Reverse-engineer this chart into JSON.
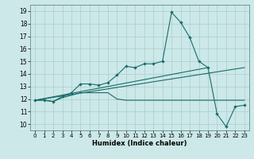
{
  "xlabel": "Humidex (Indice chaleur)",
  "xlim": [
    -0.5,
    23.5
  ],
  "ylim": [
    9.5,
    19.5
  ],
  "xticks": [
    0,
    1,
    2,
    3,
    4,
    5,
    6,
    7,
    8,
    9,
    10,
    11,
    12,
    13,
    14,
    15,
    16,
    17,
    18,
    19,
    20,
    21,
    22,
    23
  ],
  "yticks": [
    10,
    11,
    12,
    13,
    14,
    15,
    16,
    17,
    18,
    19
  ],
  "bg_color": "#cce8e8",
  "grid_color": "#aacece",
  "line_color": "#1a6b6b",
  "curve_x": [
    0,
    1,
    2,
    3,
    4,
    5,
    6,
    7,
    8,
    9,
    10,
    11,
    12,
    13,
    14,
    15,
    16,
    17,
    18,
    19,
    20,
    21,
    22,
    23
  ],
  "curve_y": [
    11.9,
    11.9,
    11.8,
    12.2,
    12.5,
    13.2,
    13.2,
    13.1,
    13.3,
    13.9,
    14.6,
    14.5,
    14.8,
    14.8,
    15.0,
    18.9,
    18.1,
    16.9,
    15.0,
    14.5,
    10.8,
    9.8,
    11.4,
    11.5
  ],
  "flat_x": [
    0,
    1,
    2,
    3,
    4,
    5,
    6,
    7,
    8,
    9,
    10,
    11,
    12,
    13,
    14,
    15,
    16,
    17,
    18,
    19,
    20,
    21,
    22,
    23
  ],
  "flat_y": [
    11.9,
    11.9,
    11.8,
    12.1,
    12.3,
    12.5,
    12.5,
    12.5,
    12.5,
    12.0,
    11.9,
    11.9,
    11.9,
    11.9,
    11.9,
    11.9,
    11.9,
    11.9,
    11.9,
    11.9,
    11.9,
    11.9,
    11.9,
    11.9
  ],
  "trend1_x": [
    0,
    23
  ],
  "trend1_y": [
    11.9,
    14.5
  ],
  "trend2_x": [
    0,
    19
  ],
  "trend2_y": [
    11.9,
    14.5
  ]
}
